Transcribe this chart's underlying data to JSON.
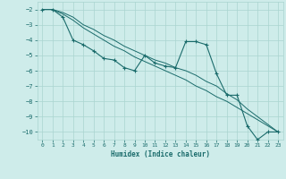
{
  "xlabel": "Humidex (Indice chaleur)",
  "ylabel": "",
  "background_color": "#ceecea",
  "grid_color": "#aad4d0",
  "line_color": "#1a6b6b",
  "xlim": [
    -0.5,
    23.5
  ],
  "ylim": [
    -10.5,
    -1.5
  ],
  "xticks": [
    0,
    1,
    2,
    3,
    4,
    5,
    6,
    7,
    8,
    9,
    10,
    11,
    12,
    13,
    14,
    15,
    16,
    17,
    18,
    19,
    20,
    21,
    22,
    23
  ],
  "yticks": [
    -2,
    -3,
    -4,
    -5,
    -6,
    -7,
    -8,
    -9,
    -10
  ],
  "x_main": [
    0,
    1,
    2,
    3,
    4,
    5,
    6,
    7,
    8,
    9,
    10,
    11,
    12,
    13,
    14,
    15,
    16,
    17,
    18,
    19,
    20,
    21,
    22,
    23
  ],
  "y_main": [
    -2.0,
    -2.0,
    -2.5,
    -4.0,
    -4.3,
    -4.7,
    -5.2,
    -5.3,
    -5.8,
    -6.0,
    -5.0,
    -5.5,
    -5.7,
    -5.8,
    -4.1,
    -4.1,
    -4.3,
    -6.2,
    -7.6,
    -7.6,
    -9.6,
    -10.5,
    -10.0,
    -10.0
  ],
  "x_line1": [
    0,
    1,
    2,
    3,
    4,
    5,
    6,
    7,
    8,
    9,
    10,
    11,
    12,
    13,
    14,
    15,
    16,
    17,
    18,
    19,
    20,
    21,
    22,
    23
  ],
  "y_line1": [
    -2.0,
    -2.0,
    -2.2,
    -2.5,
    -3.0,
    -3.3,
    -3.7,
    -4.0,
    -4.4,
    -4.7,
    -5.0,
    -5.3,
    -5.5,
    -5.8,
    -6.0,
    -6.3,
    -6.7,
    -7.0,
    -7.5,
    -7.9,
    -8.5,
    -9.0,
    -9.5,
    -10.0
  ],
  "x_line2": [
    0,
    1,
    2,
    3,
    4,
    5,
    6,
    7,
    8,
    9,
    10,
    11,
    12,
    13,
    14,
    15,
    16,
    17,
    18,
    19,
    20,
    21,
    22,
    23
  ],
  "y_line2": [
    -2.0,
    -2.0,
    -2.3,
    -2.7,
    -3.2,
    -3.6,
    -4.0,
    -4.4,
    -4.7,
    -5.1,
    -5.4,
    -5.7,
    -6.0,
    -6.3,
    -6.6,
    -7.0,
    -7.3,
    -7.7,
    -8.0,
    -8.4,
    -8.8,
    -9.2,
    -9.6,
    -10.0
  ],
  "fig_width": 3.2,
  "fig_height": 2.0,
  "dpi": 100
}
